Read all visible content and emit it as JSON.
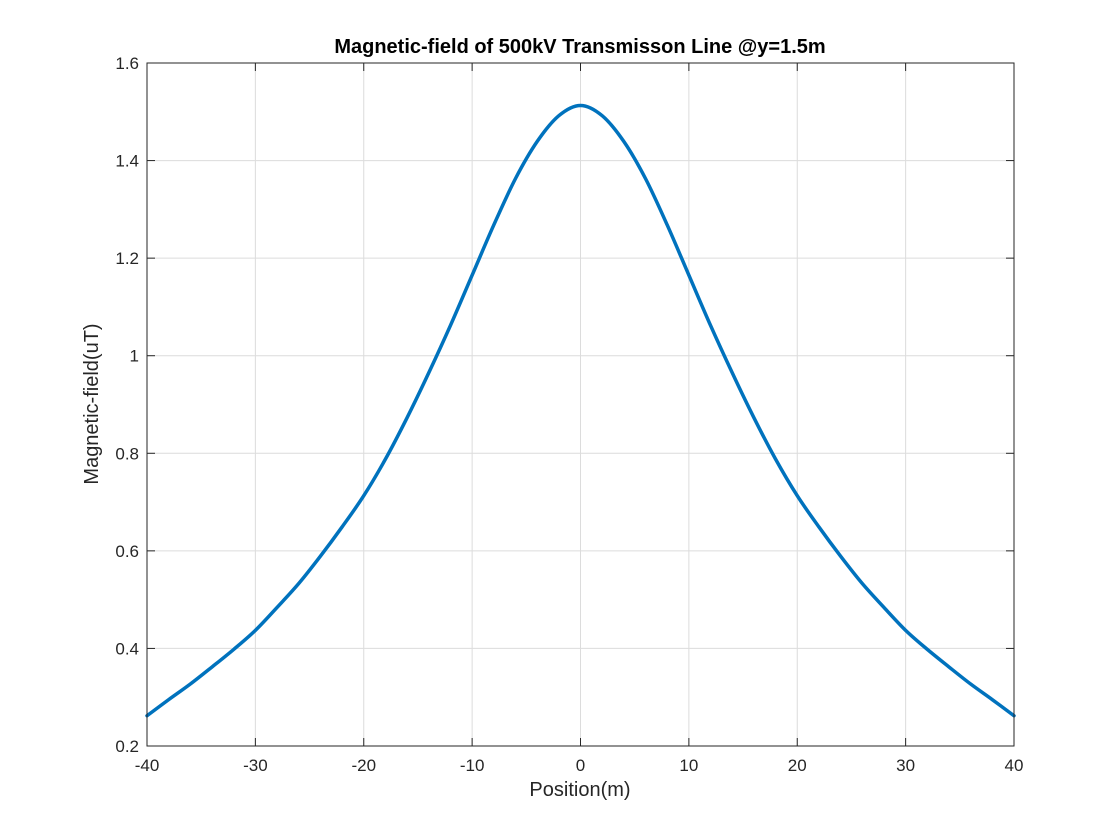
{
  "chart_data": {
    "type": "line",
    "title": "Magnetic-field of 500kV Transmisson Line @y=1.5m",
    "xlabel": "Position(m)",
    "ylabel": "Magnetic-field(uT)",
    "xlim": [
      -40,
      40
    ],
    "ylim": [
      0.2,
      1.6
    ],
    "xticks": [
      -40,
      -30,
      -20,
      -10,
      0,
      10,
      20,
      30,
      40
    ],
    "xtick_labels": [
      "-40",
      "-30",
      "-20",
      "-10",
      "0",
      "10",
      "20",
      "30",
      "40"
    ],
    "yticks": [
      0.2,
      0.4,
      0.6,
      0.8,
      1.0,
      1.2,
      1.4,
      1.6
    ],
    "ytick_labels": [
      "0.2",
      "0.4",
      "0.6",
      "0.8",
      "1",
      "1.2",
      "1.4",
      "1.6"
    ],
    "grid": true,
    "color": "#0072BD",
    "series": [
      {
        "x": [
          -40,
          -38,
          -36,
          -34,
          -32,
          -30,
          -28,
          -26,
          -24,
          -22,
          -20,
          -18,
          -16,
          -14,
          -12,
          -10,
          -8,
          -6,
          -4,
          -2,
          0,
          2,
          4,
          6,
          8,
          10,
          12,
          14,
          16,
          18,
          20,
          22,
          24,
          26,
          28,
          30,
          32,
          34,
          36,
          38,
          40
        ],
        "y": [
          0.262,
          0.295,
          0.327,
          0.362,
          0.398,
          0.437,
          0.484,
          0.533,
          0.589,
          0.649,
          0.713,
          0.788,
          0.873,
          0.965,
          1.062,
          1.165,
          1.268,
          1.363,
          1.439,
          1.492,
          1.513,
          1.492,
          1.439,
          1.363,
          1.268,
          1.165,
          1.062,
          0.965,
          0.873,
          0.788,
          0.713,
          0.649,
          0.589,
          0.533,
          0.484,
          0.437,
          0.398,
          0.362,
          0.327,
          0.295,
          0.262
        ]
      }
    ]
  }
}
